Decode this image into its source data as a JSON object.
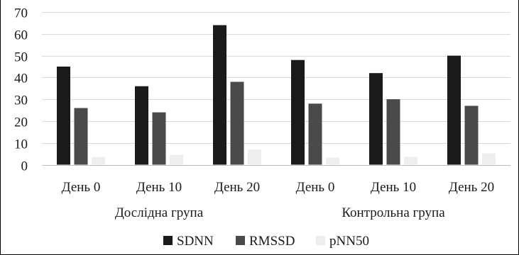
{
  "chart_data": {
    "type": "bar",
    "title": "",
    "xlabel": "",
    "ylabel": "",
    "ylim": [
      0,
      70
    ],
    "yticks": [
      0,
      10,
      20,
      30,
      40,
      50,
      60,
      70
    ],
    "grid": true,
    "legend_position": "bottom",
    "categories": [
      "День 0",
      "День 10",
      "День 20",
      "День 0",
      "День 10",
      "День 20"
    ],
    "groups": [
      {
        "label": "Дослідна група",
        "span": [
          0,
          2
        ]
      },
      {
        "label": "Контрольна група",
        "span": [
          3,
          5
        ]
      }
    ],
    "series": [
      {
        "name": "SDNN",
        "color": "#1a1a1a",
        "values": [
          45,
          36,
          64,
          48,
          42,
          50
        ]
      },
      {
        "name": "RMSSD",
        "color": "#4a4a4a",
        "values": [
          26,
          24,
          38,
          28,
          30,
          27
        ]
      },
      {
        "name": "pNN50",
        "color": "#eeeeee",
        "values": [
          3.5,
          4.5,
          7,
          3.2,
          3.6,
          5.2
        ]
      }
    ]
  }
}
